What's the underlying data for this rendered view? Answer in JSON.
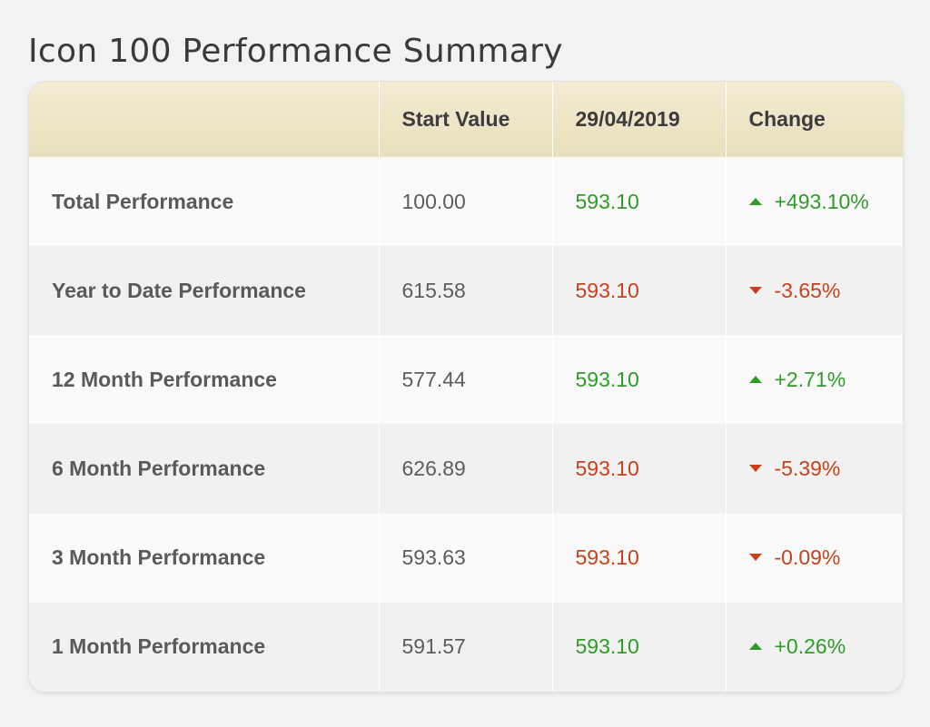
{
  "page": {
    "title": "Icon 100 Performance Summary"
  },
  "colors": {
    "positive": "#2e9c27",
    "negative": "#c9401b",
    "header_bg": "#ece4c4"
  },
  "table": {
    "headers": [
      "",
      "Start Value",
      "29/04/2019",
      "Change"
    ],
    "rows": [
      {
        "label": "Total Performance",
        "start": "100.00",
        "value": "593.10",
        "change": "+493.10%",
        "direction": "up"
      },
      {
        "label": "Year to Date Performance",
        "start": "615.58",
        "value": "593.10",
        "change": "-3.65%",
        "direction": "down"
      },
      {
        "label": "12 Month Performance",
        "start": "577.44",
        "value": "593.10",
        "change": "+2.71%",
        "direction": "up"
      },
      {
        "label": "6 Month Performance",
        "start": "626.89",
        "value": "593.10",
        "change": "-5.39%",
        "direction": "down"
      },
      {
        "label": "3 Month Performance",
        "start": "593.63",
        "value": "593.10",
        "change": "-0.09%",
        "direction": "down"
      },
      {
        "label": "1 Month Performance",
        "start": "591.57",
        "value": "593.10",
        "change": "+0.26%",
        "direction": "up"
      }
    ]
  }
}
